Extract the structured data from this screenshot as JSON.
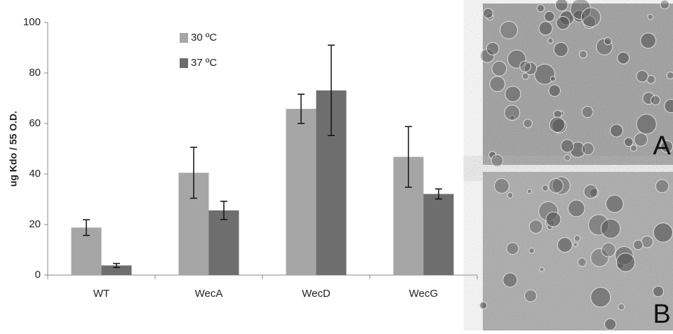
{
  "chart_data": {
    "type": "bar",
    "y_label": "ug Kdo / 55 O.D.",
    "categories": [
      "WT",
      "WecA",
      "WecD",
      "WecG"
    ],
    "series": [
      {
        "name": "30 ºC",
        "color": "#a6a6a6",
        "values": [
          18.8,
          40.5,
          65.8,
          46.8
        ],
        "errors": [
          3.1,
          10.1,
          5.8,
          12
        ]
      },
      {
        "name": "37 ºC",
        "color": "#6e6e6e",
        "values": [
          3.8,
          25.6,
          73.1,
          32.1
        ],
        "errors": [
          0.8,
          3.6,
          17.9,
          2
        ]
      }
    ],
    "ylim": [
      0,
      100
    ],
    "yticks": [
      0,
      20,
      40,
      60,
      80,
      100
    ]
  },
  "panels": [
    {
      "label": "A"
    },
    {
      "label": "B"
    }
  ]
}
